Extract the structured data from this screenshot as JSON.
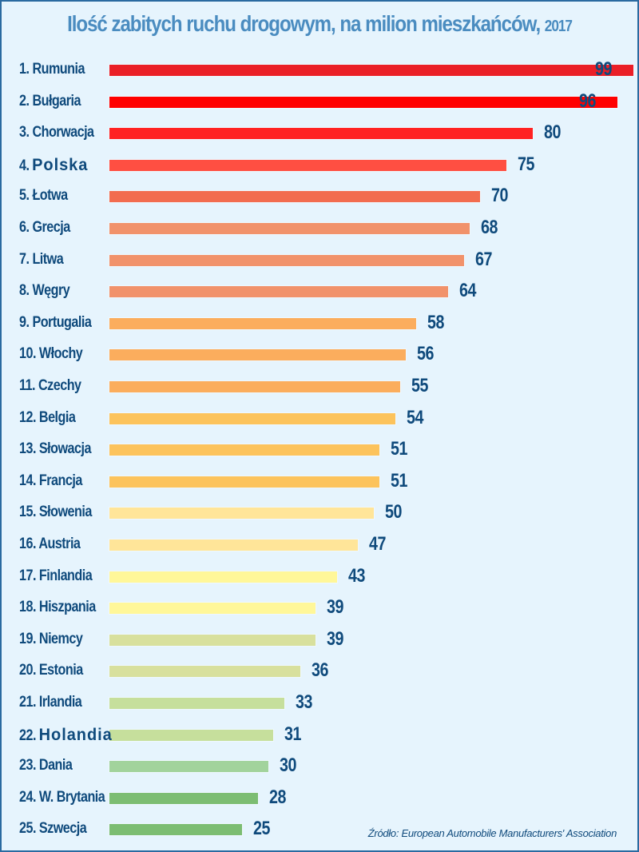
{
  "title": {
    "main": "Ilość zabitych ruchu drogowym, na milion mieszkańców,",
    "year": "2017"
  },
  "source": "Źródło: European Automobile Manufacturers' Association",
  "chart_data": {
    "type": "bar",
    "orientation": "horizontal",
    "title": "Ilość zabitych ruchu drogowym, na milion mieszkańców, 2017",
    "xlabel": "",
    "ylabel": "",
    "grid": false,
    "legend": null,
    "categories": [
      "1. Rumunia",
      "2. Bułgaria",
      "3. Chorwacja",
      "4. Polska",
      "5. Łotwa",
      "6. Grecja",
      "7. Litwa",
      "8. Węgry",
      "9. Portugalia",
      "10. Włochy",
      "11. Czechy",
      "12. Belgia",
      "13. Słowacja",
      "14. Francja",
      "15. Słowenia",
      "16. Austria",
      "17. Finlandia",
      "18. Hiszpania",
      "19. Niemcy",
      "20. Estonia",
      "21. Irlandia",
      "22. Holandia",
      "23. Dania",
      "24. W. Brytania",
      "25. Szwecja"
    ],
    "values": [
      99,
      96,
      80,
      75,
      70,
      68,
      67,
      64,
      58,
      56,
      55,
      54,
      51,
      51,
      50,
      47,
      43,
      39,
      39,
      36,
      33,
      31,
      30,
      28,
      25
    ],
    "annotations": [
      "Źródło: European Automobile Manufacturers' Association"
    ]
  },
  "rows": [
    {
      "rank": "1.",
      "country": "Rumunia",
      "value": "99",
      "color": "#ea1f27",
      "bold": false
    },
    {
      "rank": "2.",
      "country": "Bułgaria",
      "value": "96",
      "color": "#ff0000",
      "bold": false
    },
    {
      "rank": "3.",
      "country": "Chorwacja",
      "value": "80",
      "color": "#ff2222",
      "bold": false
    },
    {
      "rank": "4.",
      "country": "Polska",
      "value": "75",
      "color": "#ff4f42",
      "bold": true
    },
    {
      "rank": "5.",
      "country": "Łotwa",
      "value": "70",
      "color": "#f26c4f",
      "bold": false
    },
    {
      "rank": "6.",
      "country": "Grecja",
      "value": "68",
      "color": "#f1926b",
      "bold": false
    },
    {
      "rank": "7.",
      "country": "Litwa",
      "value": "67",
      "color": "#f1926b",
      "bold": false
    },
    {
      "rank": "8.",
      "country": "Węgry",
      "value": "64",
      "color": "#f1926b",
      "bold": false
    },
    {
      "rank": "9.",
      "country": "Portugalia",
      "value": "58",
      "color": "#fbad5d",
      "bold": false
    },
    {
      "rank": "10.",
      "country": "Włochy",
      "value": "56",
      "color": "#fbad5d",
      "bold": false
    },
    {
      "rank": "11.",
      "country": "Czechy",
      "value": "55",
      "color": "#fbad5d",
      "bold": false
    },
    {
      "rank": "12.",
      "country": "Belgia",
      "value": "54",
      "color": "#fcc35c",
      "bold": false
    },
    {
      "rank": "13.",
      "country": "Słowacja",
      "value": "51",
      "color": "#fcc35c",
      "bold": false
    },
    {
      "rank": "14.",
      "country": "Francja",
      "value": "51",
      "color": "#fcc35c",
      "bold": false
    },
    {
      "rank": "15.",
      "country": "Słowenia",
      "value": "50",
      "color": "#ffe599",
      "bold": false
    },
    {
      "rank": "16.",
      "country": "Austria",
      "value": "47",
      "color": "#ffe599",
      "bold": false
    },
    {
      "rank": "17.",
      "country": "Finlandia",
      "value": "43",
      "color": "#fff799",
      "bold": false
    },
    {
      "rank": "18.",
      "country": "Hiszpania",
      "value": "39",
      "color": "#fff799",
      "bold": false
    },
    {
      "rank": "19.",
      "country": "Niemcy",
      "value": "39",
      "color": "#d8e09d",
      "bold": false
    },
    {
      "rank": "20.",
      "country": "Estonia",
      "value": "36",
      "color": "#d8e09d",
      "bold": false
    },
    {
      "rank": "21.",
      "country": "Irlandia",
      "value": "33",
      "color": "#c6df9c",
      "bold": false
    },
    {
      "rank": "22.",
      "country": "Holandia",
      "value": "31",
      "color": "#c6df9c",
      "bold": true
    },
    {
      "rank": "23.",
      "country": "Dania",
      "value": "30",
      "color": "#a2d39c",
      "bold": false
    },
    {
      "rank": "24.",
      "country": "W. Brytania",
      "value": "28",
      "color": "#7cbd72",
      "bold": false
    },
    {
      "rank": "25.",
      "country": "Szwecja",
      "value": "25",
      "color": "#7cbd72",
      "bold": false
    }
  ]
}
